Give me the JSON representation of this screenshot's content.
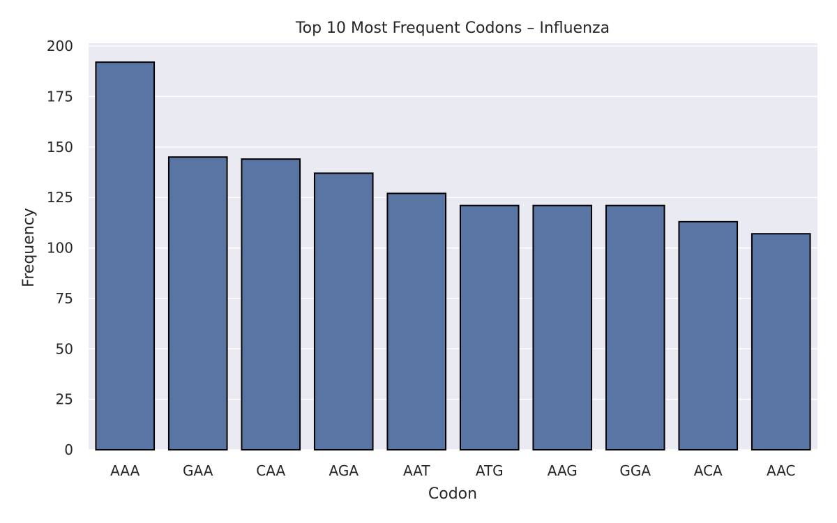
{
  "chart_data": {
    "type": "bar",
    "title": "Top 10 Most Frequent Codons – Influenza",
    "xlabel": "Codon",
    "ylabel": "Frequency",
    "categories": [
      "AAA",
      "GAA",
      "CAA",
      "AGA",
      "AAT",
      "ATG",
      "AAG",
      "GGA",
      "ACA",
      "AAC"
    ],
    "values": [
      192,
      145,
      144,
      137,
      127,
      121,
      121,
      121,
      113,
      107
    ],
    "ylim": [
      0,
      200
    ],
    "yticks": [
      0,
      25,
      50,
      75,
      100,
      125,
      150,
      175,
      200
    ],
    "grid": true,
    "colors": {
      "bar": "#5975a4",
      "bar_edge": "#000000",
      "plot_background": "#eaeaf2",
      "grid": "#ffffff"
    }
  }
}
